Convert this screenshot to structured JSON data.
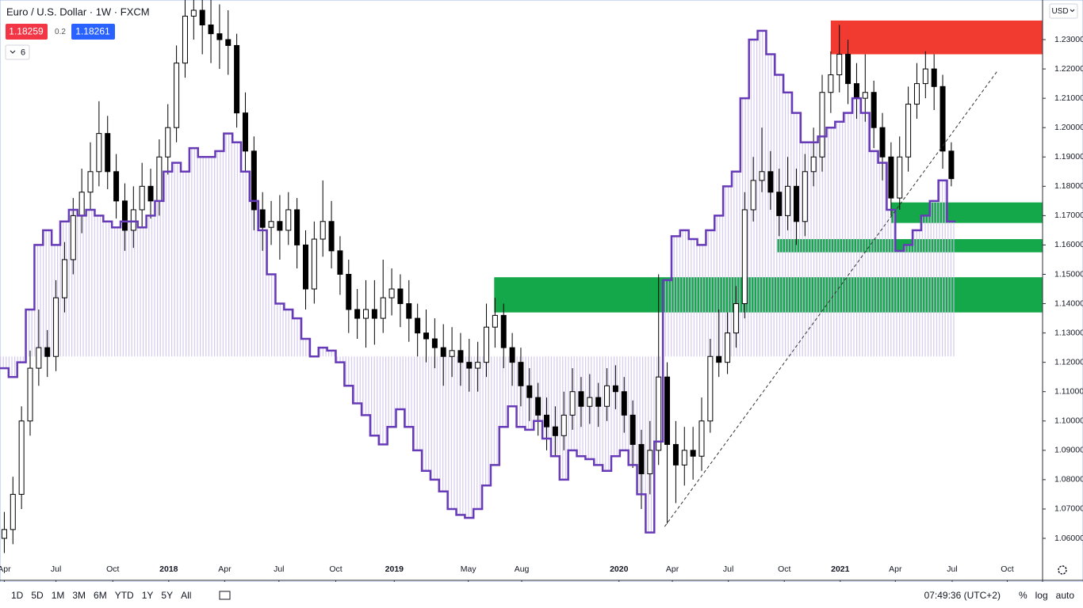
{
  "chart_data": {
    "type": "candlestick",
    "title": "Euro / U.S. Dollar · 1W · FXCM",
    "bid": 1.18259,
    "spread": 0.2,
    "ask": 1.18261,
    "indicators": 6,
    "currency": "USD",
    "up_color": "#ffffff",
    "down_color": "#000000",
    "open": [
      1.06,
      1.063,
      1.075,
      1.1,
      1.118,
      1.125,
      1.122,
      1.142,
      1.155,
      1.17,
      1.178,
      1.185,
      1.198,
      1.185,
      1.175,
      1.165,
      1.172,
      1.18,
      1.175,
      1.19,
      1.2,
      1.222,
      1.238,
      1.24,
      1.235,
      1.232,
      1.23,
      1.228,
      1.205,
      1.192,
      1.172,
      1.166,
      1.168,
      1.165,
      1.172,
      1.16,
      1.145,
      1.162,
      1.168,
      1.158,
      1.15,
      1.138,
      1.135,
      1.138,
      1.135,
      1.142,
      1.145,
      1.14,
      1.135,
      1.13,
      1.128,
      1.125,
      1.122,
      1.124,
      1.12,
      1.118,
      1.12,
      1.132,
      1.136,
      1.125,
      1.12,
      1.112,
      1.108,
      1.102,
      1.098,
      1.095,
      1.102,
      1.11,
      1.105,
      1.108,
      1.105,
      1.112,
      1.11,
      1.102,
      1.092,
      1.082,
      1.09,
      1.115,
      1.092,
      1.085,
      1.09,
      1.088,
      1.1,
      1.122,
      1.12,
      1.13,
      1.14,
      1.172,
      1.182,
      1.185,
      1.178,
      1.17,
      1.18,
      1.168,
      1.185,
      1.19,
      1.212,
      1.218,
      1.225,
      1.215,
      1.21,
      1.212,
      1.2,
      1.19,
      1.176,
      1.19,
      1.208,
      1.215,
      1.22,
      1.214,
      1.192
    ],
    "high": [
      1.069,
      1.081,
      1.105,
      1.124,
      1.138,
      1.131,
      1.148,
      1.161,
      1.176,
      1.186,
      1.195,
      1.209,
      1.204,
      1.191,
      1.181,
      1.18,
      1.188,
      1.186,
      1.196,
      1.208,
      1.228,
      1.25,
      1.255,
      1.25,
      1.245,
      1.242,
      1.24,
      1.232,
      1.212,
      1.197,
      1.178,
      1.175,
      1.177,
      1.178,
      1.176,
      1.165,
      1.168,
      1.182,
      1.175,
      1.163,
      1.155,
      1.145,
      1.148,
      1.148,
      1.155,
      1.152,
      1.15,
      1.148,
      1.14,
      1.138,
      1.135,
      1.133,
      1.132,
      1.13,
      1.128,
      1.127,
      1.14,
      1.142,
      1.14,
      1.13,
      1.125,
      1.118,
      1.113,
      1.108,
      1.105,
      1.11,
      1.118,
      1.115,
      1.116,
      1.113,
      1.118,
      1.119,
      1.115,
      1.107,
      1.097,
      1.1,
      1.15,
      1.12,
      1.1,
      1.098,
      1.098,
      1.108,
      1.128,
      1.138,
      1.137,
      1.146,
      1.178,
      1.19,
      1.2,
      1.192,
      1.186,
      1.19,
      1.186,
      1.191,
      1.2,
      1.218,
      1.226,
      1.235,
      1.23,
      1.222,
      1.225,
      1.216,
      1.205,
      1.195,
      1.197,
      1.214,
      1.222,
      1.226,
      1.225,
      1.218,
      1.195
    ],
    "low": [
      1.055,
      1.058,
      1.07,
      1.095,
      1.112,
      1.115,
      1.117,
      1.137,
      1.15,
      1.164,
      1.172,
      1.18,
      1.179,
      1.169,
      1.158,
      1.159,
      1.166,
      1.169,
      1.17,
      1.184,
      1.195,
      1.217,
      1.23,
      1.225,
      1.222,
      1.22,
      1.218,
      1.2,
      1.185,
      1.165,
      1.158,
      1.16,
      1.155,
      1.16,
      1.152,
      1.138,
      1.14,
      1.156,
      1.152,
      1.143,
      1.13,
      1.128,
      1.125,
      1.126,
      1.13,
      1.136,
      1.132,
      1.127,
      1.122,
      1.12,
      1.118,
      1.112,
      1.115,
      1.112,
      1.11,
      1.11,
      1.115,
      1.125,
      1.118,
      1.112,
      1.105,
      1.1,
      1.095,
      1.09,
      1.088,
      1.09,
      1.097,
      1.098,
      1.099,
      1.098,
      1.1,
      1.104,
      1.096,
      1.084,
      1.07,
      1.075,
      1.085,
      1.065,
      1.072,
      1.078,
      1.08,
      1.083,
      1.096,
      1.115,
      1.116,
      1.125,
      1.135,
      1.168,
      1.178,
      1.172,
      1.163,
      1.165,
      1.16,
      1.163,
      1.18,
      1.185,
      1.205,
      1.212,
      1.208,
      1.203,
      1.202,
      1.193,
      1.182,
      1.17,
      1.172,
      1.185,
      1.203,
      1.21,
      1.206,
      1.186,
      1.18
    ],
    "close": [
      1.063,
      1.075,
      1.1,
      1.118,
      1.125,
      1.122,
      1.142,
      1.155,
      1.17,
      1.178,
      1.185,
      1.198,
      1.185,
      1.175,
      1.165,
      1.172,
      1.18,
      1.175,
      1.19,
      1.2,
      1.222,
      1.238,
      1.24,
      1.235,
      1.232,
      1.23,
      1.228,
      1.205,
      1.192,
      1.172,
      1.166,
      1.168,
      1.165,
      1.172,
      1.16,
      1.145,
      1.162,
      1.168,
      1.158,
      1.15,
      1.138,
      1.135,
      1.138,
      1.135,
      1.142,
      1.145,
      1.14,
      1.135,
      1.13,
      1.128,
      1.125,
      1.122,
      1.124,
      1.12,
      1.118,
      1.12,
      1.132,
      1.136,
      1.125,
      1.12,
      1.112,
      1.108,
      1.102,
      1.098,
      1.095,
      1.102,
      1.11,
      1.105,
      1.108,
      1.105,
      1.112,
      1.11,
      1.102,
      1.092,
      1.082,
      1.09,
      1.115,
      1.092,
      1.085,
      1.09,
      1.088,
      1.1,
      1.122,
      1.12,
      1.13,
      1.14,
      1.172,
      1.182,
      1.185,
      1.178,
      1.17,
      1.18,
      1.168,
      1.185,
      1.19,
      1.212,
      1.218,
      1.225,
      1.215,
      1.21,
      1.212,
      1.2,
      1.19,
      1.176,
      1.19,
      1.208,
      1.215,
      1.22,
      1.214,
      1.192,
      1.1826
    ],
    "indicator": {
      "color": "#673ab7",
      "fill": "#cfc3ea",
      "baseline": 1.122,
      "values": [
        1.118,
        1.115,
        1.12,
        1.138,
        1.16,
        1.165,
        1.16,
        1.168,
        1.172,
        1.17,
        1.172,
        1.17,
        1.168,
        1.166,
        1.168,
        1.168,
        1.166,
        1.17,
        1.175,
        1.185,
        1.188,
        1.185,
        1.193,
        1.19,
        1.19,
        1.192,
        1.198,
        1.195,
        1.185,
        1.175,
        1.165,
        1.15,
        1.14,
        1.138,
        1.135,
        1.128,
        1.122,
        1.125,
        1.124,
        1.12,
        1.112,
        1.106,
        1.102,
        1.095,
        1.092,
        1.098,
        1.104,
        1.098,
        1.09,
        1.083,
        1.08,
        1.076,
        1.07,
        1.068,
        1.067,
        1.07,
        1.078,
        1.085,
        1.098,
        1.105,
        1.098,
        1.097,
        1.1,
        1.094,
        1.088,
        1.08,
        1.09,
        1.088,
        1.087,
        1.085,
        1.083,
        1.088,
        1.09,
        1.085,
        1.075,
        1.062,
        1.093,
        1.148,
        1.163,
        1.165,
        1.162,
        1.16,
        1.165,
        1.17,
        1.18,
        1.185,
        1.21,
        1.23,
        1.233,
        1.225,
        1.218,
        1.212,
        1.205,
        1.195,
        1.195,
        1.197,
        1.2,
        1.202,
        1.205,
        1.21,
        1.205,
        1.192,
        1.188,
        1.172,
        1.158,
        1.16,
        1.165,
        1.17,
        1.175,
        1.182,
        1.168
      ]
    },
    "zones": [
      {
        "color": "#f23b30",
        "from": 1.2365,
        "to": 1.225,
        "start": 96
      },
      {
        "color": "#14a84a",
        "from": 1.1745,
        "to": 1.1675,
        "start": 103
      },
      {
        "color": "#14a84a",
        "from": 1.162,
        "to": 1.1575,
        "start": 89.8
      },
      {
        "color": "#14a84a",
        "from": 1.149,
        "to": 1.137,
        "start": 56.9
      }
    ],
    "trendline": {
      "x": [
        76.7,
        115.4
      ],
      "y": [
        1.064,
        1.2195
      ]
    },
    "xlim": [
      -0.5,
      120.6
    ],
    "ylim": [
      1.0457,
      1.2435
    ],
    "xticks": [
      {
        "value": 0,
        "label": "Apr"
      },
      {
        "value": 6,
        "label": "Jul"
      },
      {
        "value": 12.6,
        "label": "Oct"
      },
      {
        "value": 19.1,
        "label": "2018"
      },
      {
        "value": 25.6,
        "label": "Apr"
      },
      {
        "value": 31.9,
        "label": "Jul"
      },
      {
        "value": 38.5,
        "label": "Oct"
      },
      {
        "value": 45.3,
        "label": "2019"
      },
      {
        "value": 53.9,
        "label": "May"
      },
      {
        "value": 60.1,
        "label": "Aug"
      },
      {
        "value": 71.4,
        "label": "2020"
      },
      {
        "value": 77.6,
        "label": "Apr"
      },
      {
        "value": 84.1,
        "label": "Jul"
      },
      {
        "value": 90.6,
        "label": "Oct"
      },
      {
        "value": 97.1,
        "label": "2021"
      },
      {
        "value": 103.5,
        "label": "Apr"
      },
      {
        "value": 110.1,
        "label": "Jul"
      },
      {
        "value": 116.5,
        "label": "Oct"
      }
    ],
    "yticks": [
      {
        "value": 1.23,
        "label": "1.23000"
      },
      {
        "value": 1.22,
        "label": "1.22000"
      },
      {
        "value": 1.21,
        "label": "1.21000"
      },
      {
        "value": 1.2,
        "label": "1.20000"
      },
      {
        "value": 1.19,
        "label": "1.19000"
      },
      {
        "value": 1.18,
        "label": "1.18000"
      },
      {
        "value": 1.17,
        "label": "1.17000"
      },
      {
        "value": 1.16,
        "label": "1.16000"
      },
      {
        "value": 1.15,
        "label": "1.15000"
      },
      {
        "value": 1.14,
        "label": "1.14000"
      },
      {
        "value": 1.13,
        "label": "1.13000"
      },
      {
        "value": 1.12,
        "label": "1.12000"
      },
      {
        "value": 1.11,
        "label": "1.11000"
      },
      {
        "value": 1.1,
        "label": "1.10000"
      },
      {
        "value": 1.09,
        "label": "1.09000"
      },
      {
        "value": 1.08,
        "label": "1.08000"
      },
      {
        "value": 1.07,
        "label": "1.07000"
      },
      {
        "value": 1.06,
        "label": "1.06000"
      }
    ],
    "grid": false
  },
  "toolbar": {
    "ranges": [
      "1D",
      "5D",
      "1M",
      "3M",
      "6M",
      "YTD",
      "1Y",
      "5Y",
      "All"
    ],
    "time": "07:49:36 (UTC+2)",
    "options": [
      "%",
      "log",
      "auto"
    ]
  }
}
